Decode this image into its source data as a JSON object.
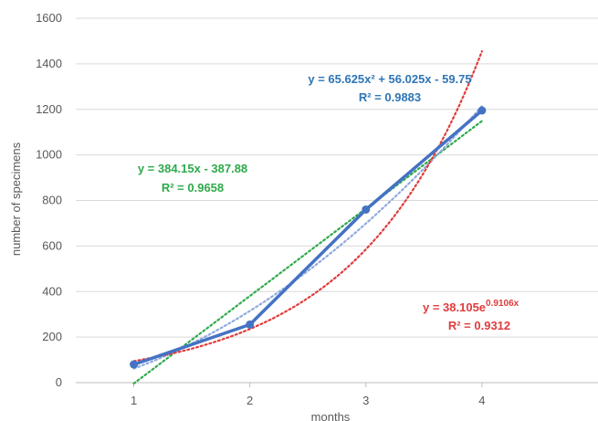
{
  "chart_data": {
    "type": "line",
    "xlabel": "months",
    "ylabel": "number of specimens",
    "xlim": [
      0.5,
      5.0
    ],
    "ylim": [
      0,
      1600
    ],
    "x_ticks": [
      "1",
      "2",
      "3",
      "4"
    ],
    "y_ticks": [
      "0",
      "200",
      "400",
      "600",
      "800",
      "1000",
      "1200",
      "1400",
      "1600"
    ],
    "grid": "horizontal",
    "legend": "none",
    "series": [
      {
        "color": "#4472c4",
        "x": [
          1,
          2,
          3,
          4
        ],
        "y": [
          80,
          255,
          760,
          1195
        ]
      }
    ],
    "trendlines": [
      {
        "kind": "linear",
        "color": "#2eaa4a",
        "x_range": [
          1,
          4
        ],
        "equation": "y = 384.15x - 387.88",
        "r2": "R² = 0.9658"
      },
      {
        "kind": "polynomial",
        "color": "#8faadc",
        "x_range": [
          1,
          4
        ],
        "equation": "y = 65.625x² + 56.025x - 59.75",
        "r2": "R² = 0.9883"
      },
      {
        "kind": "exponential",
        "color": "#e03c3c",
        "x_range": [
          1,
          4
        ],
        "equation_base": "y = 38.105e",
        "equation_exp": "0.9106x",
        "r2": "R² = 0.9312"
      }
    ]
  }
}
